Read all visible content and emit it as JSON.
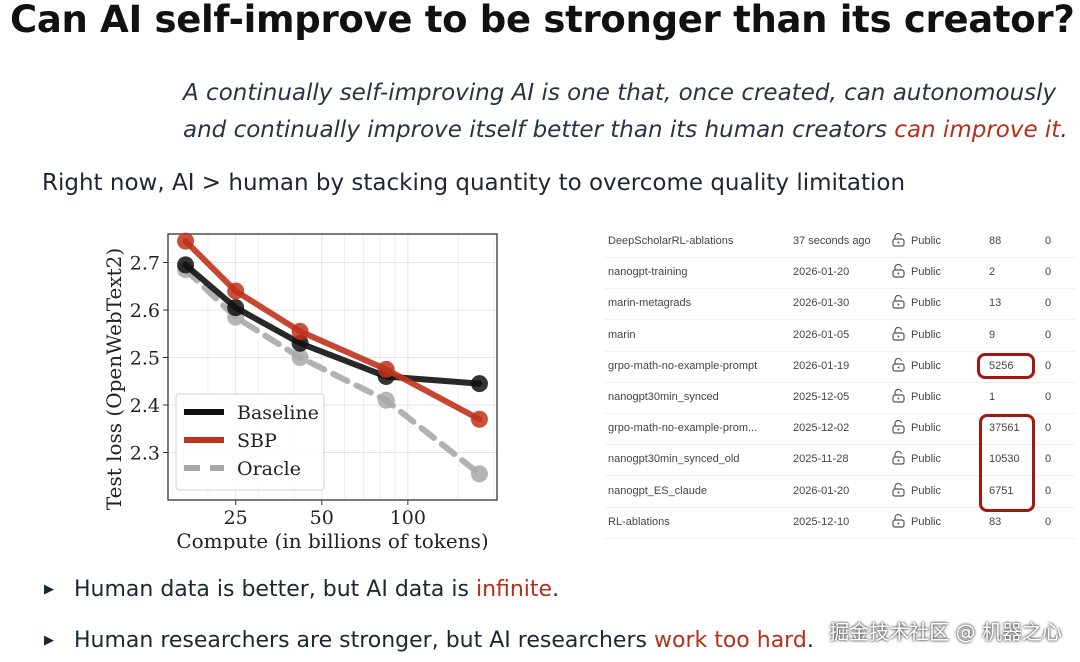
{
  "title": "Can AI self-improve to be stronger than its creator?",
  "quote": {
    "line1": "A continually self-improving AI is one that, once created, can autonomously",
    "line2_plain": "and continually improve itself better than its human creators ",
    "line2_highlight": "can improve it",
    "line2_end": "."
  },
  "subtitle": "Right now, AI > human by stacking quantity to overcome quality limitation",
  "colors": {
    "highlight": "#b5301b",
    "baseline": "#111111",
    "sbp": "#c0321c",
    "oracle": "#a8a8a8",
    "box": "#a3170f"
  },
  "chart_data": {
    "type": "line",
    "xlabel": "Compute (in billions of tokens)",
    "ylabel": "Test loss (OpenWebText2)",
    "xscale": "log",
    "xticks": [
      "25",
      "50",
      "100"
    ],
    "yticks": [
      "2.3",
      "2.4",
      "2.5",
      "2.6",
      "2.7"
    ],
    "xlim": [
      14.5,
      205
    ],
    "ylim": [
      2.2,
      2.76
    ],
    "grid": true,
    "legend": "lower-left",
    "x": [
      16.7,
      25,
      42,
      84,
      178
    ],
    "series": [
      {
        "name": "Baseline",
        "values": [
          2.695,
          2.605,
          2.53,
          2.46,
          2.445
        ],
        "style": "solid"
      },
      {
        "name": "SBP",
        "values": [
          2.745,
          2.64,
          2.555,
          2.475,
          2.37
        ],
        "style": "solid"
      },
      {
        "name": "Oracle",
        "values": [
          2.685,
          2.585,
          2.5,
          2.41,
          2.255
        ],
        "style": "dashed"
      }
    ]
  },
  "table": {
    "rows": [
      {
        "name": "DeepScholarRL-ablations",
        "date": "37 seconds ago",
        "visibility": "Public",
        "count": "88",
        "other": "0"
      },
      {
        "name": "nanogpt-training",
        "date": "2026-01-20",
        "visibility": "Public",
        "count": "2",
        "other": "0"
      },
      {
        "name": "marin-metagrads",
        "date": "2026-01-30",
        "visibility": "Public",
        "count": "13",
        "other": "0"
      },
      {
        "name": "marin",
        "date": "2026-01-05",
        "visibility": "Public",
        "count": "9",
        "other": "0"
      },
      {
        "name": "grpo-math-no-example-prompt",
        "date": "2026-01-19",
        "visibility": "Public",
        "count": "5256",
        "other": "0"
      },
      {
        "name": "nanogpt30min_synced",
        "date": "2025-12-05",
        "visibility": "Public",
        "count": "1",
        "other": "0"
      },
      {
        "name": "grpo-math-no-example-prom...",
        "date": "2025-12-02",
        "visibility": "Public",
        "count": "37561",
        "other": "0"
      },
      {
        "name": "nanogpt30min_synced_old",
        "date": "2025-11-28",
        "visibility": "Public",
        "count": "10530",
        "other": "0"
      },
      {
        "name": "nanogpt_ES_claude",
        "date": "2026-01-20",
        "visibility": "Public",
        "count": "6751",
        "other": "0"
      },
      {
        "name": "RL-ablations",
        "date": "2025-12-10",
        "visibility": "Public",
        "count": "83",
        "other": "0"
      }
    ],
    "lock_icon": "unlock-icon"
  },
  "bullets": [
    {
      "plain": "Human data is better, but AI data is ",
      "highlight": "infinite",
      "end": "."
    },
    {
      "plain": "Human researchers are stronger, but AI researchers ",
      "highlight": "work too hard",
      "end": "."
    }
  ],
  "watermark": "掘金技术社区 @ 机器之心"
}
